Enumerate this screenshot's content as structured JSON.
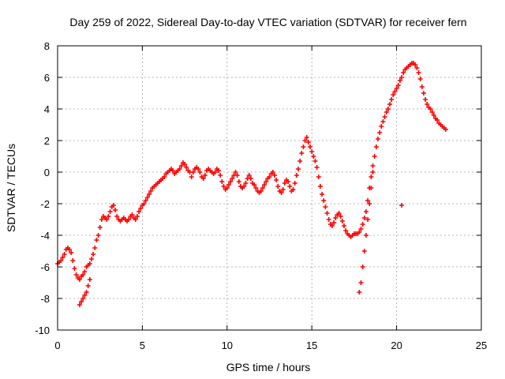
{
  "chart_data": {
    "type": "scatter",
    "title": "Day 259 of 2022, Sidereal Day-to-day VTEC variation (SDTVAR) for receiver fern",
    "xlabel": "GPS time / hours",
    "ylabel": "SDTVAR / TECUs",
    "xlim": [
      0,
      25
    ],
    "ylim": [
      -10,
      8
    ],
    "xticks": [
      0,
      5,
      10,
      15,
      20,
      25
    ],
    "yticks": [
      -10,
      -8,
      -6,
      -4,
      -2,
      0,
      2,
      4,
      6,
      8
    ],
    "xtick_labels": [
      "0",
      "5",
      "10",
      "15",
      "20",
      "25"
    ],
    "ytick_labels": [
      "-10",
      "-8",
      "-6",
      "-4",
      "-2",
      "0",
      "2",
      "4",
      "6",
      "8"
    ],
    "grid": true,
    "marker": "+",
    "series": [
      {
        "name": "SDTVAR",
        "color": "#ff0000",
        "points": [
          [
            0.0,
            -5.8
          ],
          [
            0.1,
            -5.7
          ],
          [
            0.2,
            -5.6
          ],
          [
            0.3,
            -5.4
          ],
          [
            0.4,
            -5.2
          ],
          [
            0.5,
            -4.9
          ],
          [
            0.6,
            -4.8
          ],
          [
            0.7,
            -4.9
          ],
          [
            0.8,
            -5.1
          ],
          [
            0.9,
            -5.6
          ],
          [
            1.0,
            -6.1
          ],
          [
            1.1,
            -6.5
          ],
          [
            1.2,
            -6.7
          ],
          [
            1.3,
            -6.8
          ],
          [
            1.4,
            -6.6
          ],
          [
            1.5,
            -6.5
          ],
          [
            1.6,
            -6.3
          ],
          [
            1.7,
            -6.0
          ],
          [
            1.8,
            -5.9
          ],
          [
            1.9,
            -5.8
          ],
          [
            2.0,
            -5.5
          ],
          [
            2.1,
            -5.2
          ],
          [
            2.2,
            -4.8
          ],
          [
            2.3,
            -4.3
          ],
          [
            2.4,
            -4.0
          ],
          [
            2.5,
            -3.5
          ],
          [
            2.6,
            -3.0
          ],
          [
            2.7,
            -2.8
          ],
          [
            2.8,
            -2.9
          ],
          [
            2.9,
            -3.0
          ],
          [
            3.0,
            -2.8
          ],
          [
            3.1,
            -2.5
          ],
          [
            3.2,
            -2.2
          ],
          [
            3.3,
            -2.1
          ],
          [
            3.4,
            -2.4
          ],
          [
            3.5,
            -2.8
          ],
          [
            3.6,
            -3.0
          ],
          [
            3.7,
            -3.1
          ],
          [
            3.8,
            -3.0
          ],
          [
            3.9,
            -2.9
          ],
          [
            4.0,
            -3.0
          ],
          [
            4.1,
            -3.1
          ],
          [
            4.2,
            -3.0
          ],
          [
            4.3,
            -2.8
          ],
          [
            4.4,
            -2.7
          ],
          [
            4.5,
            -2.9
          ],
          [
            4.6,
            -3.0
          ],
          [
            4.7,
            -2.8
          ],
          [
            4.8,
            -2.5
          ],
          [
            4.9,
            -2.3
          ],
          [
            5.0,
            -2.1
          ],
          [
            5.1,
            -2.0
          ],
          [
            5.2,
            -1.8
          ],
          [
            5.3,
            -1.6
          ],
          [
            5.4,
            -1.4
          ],
          [
            5.5,
            -1.2
          ],
          [
            5.6,
            -1.0
          ],
          [
            5.7,
            -0.9
          ],
          [
            5.8,
            -0.8
          ],
          [
            5.9,
            -0.7
          ],
          [
            6.0,
            -0.6
          ],
          [
            6.1,
            -0.5
          ],
          [
            6.2,
            -0.4
          ],
          [
            6.3,
            -0.3
          ],
          [
            6.4,
            -0.1
          ],
          [
            6.5,
            0.0
          ],
          [
            6.6,
            0.1
          ],
          [
            6.7,
            0.2
          ],
          [
            6.8,
            0.1
          ],
          [
            6.9,
            -0.1
          ],
          [
            7.0,
            0.0
          ],
          [
            7.1,
            0.1
          ],
          [
            7.2,
            0.2
          ],
          [
            7.3,
            0.4
          ],
          [
            7.4,
            0.6
          ],
          [
            7.5,
            0.5
          ],
          [
            7.6,
            0.3
          ],
          [
            7.7,
            0.1
          ],
          [
            7.8,
            0.0
          ],
          [
            7.9,
            -0.3
          ],
          [
            8.0,
            0.0
          ],
          [
            8.1,
            0.2
          ],
          [
            8.2,
            0.3
          ],
          [
            8.3,
            0.2
          ],
          [
            8.4,
            0.0
          ],
          [
            8.5,
            -0.3
          ],
          [
            8.6,
            -0.4
          ],
          [
            8.7,
            -0.2
          ],
          [
            8.8,
            0.1
          ],
          [
            8.9,
            0.2
          ],
          [
            9.0,
            0.1
          ],
          [
            9.1,
            0.0
          ],
          [
            9.2,
            -0.1
          ],
          [
            9.3,
            0.0
          ],
          [
            9.4,
            0.2
          ],
          [
            9.5,
            0.1
          ],
          [
            9.6,
            -0.2
          ],
          [
            9.7,
            -0.6
          ],
          [
            9.8,
            -0.9
          ],
          [
            9.9,
            -1.1
          ],
          [
            10.0,
            -1.0
          ],
          [
            10.1,
            -0.8
          ],
          [
            10.2,
            -0.6
          ],
          [
            10.3,
            -0.4
          ],
          [
            10.4,
            -0.2
          ],
          [
            10.5,
            0.0
          ],
          [
            10.6,
            -0.2
          ],
          [
            10.7,
            -0.6
          ],
          [
            10.8,
            -0.9
          ],
          [
            10.9,
            -1.0
          ],
          [
            11.0,
            -0.9
          ],
          [
            11.1,
            -0.7
          ],
          [
            11.2,
            -0.4
          ],
          [
            11.3,
            -0.2
          ],
          [
            11.4,
            -0.4
          ],
          [
            11.5,
            -0.7
          ],
          [
            11.6,
            -0.8
          ],
          [
            11.7,
            -1.0
          ],
          [
            11.8,
            -1.2
          ],
          [
            11.9,
            -1.3
          ],
          [
            12.0,
            -1.2
          ],
          [
            12.1,
            -1.0
          ],
          [
            12.2,
            -0.8
          ],
          [
            12.3,
            -0.6
          ],
          [
            12.4,
            -0.4
          ],
          [
            12.5,
            -0.3
          ],
          [
            12.6,
            -0.1
          ],
          [
            12.7,
            0.0
          ],
          [
            12.8,
            -0.2
          ],
          [
            12.9,
            -0.5
          ],
          [
            13.0,
            -0.9
          ],
          [
            13.1,
            -1.2
          ],
          [
            13.2,
            -1.3
          ],
          [
            13.3,
            -1.1
          ],
          [
            13.4,
            -0.7
          ],
          [
            13.5,
            -0.5
          ],
          [
            13.6,
            -0.6
          ],
          [
            13.7,
            -0.9
          ],
          [
            13.8,
            -1.2
          ],
          [
            13.9,
            -1.1
          ],
          [
            14.0,
            -0.7
          ],
          [
            14.1,
            -0.2
          ],
          [
            14.2,
            0.2
          ],
          [
            14.3,
            0.7
          ],
          [
            14.4,
            1.2
          ],
          [
            14.5,
            1.6
          ],
          [
            14.6,
            2.0
          ],
          [
            14.7,
            2.2
          ],
          [
            14.8,
            1.9
          ],
          [
            14.9,
            1.6
          ],
          [
            15.0,
            1.3
          ],
          [
            15.1,
            1.0
          ],
          [
            15.2,
            0.7
          ],
          [
            15.3,
            0.3
          ],
          [
            15.4,
            -0.3
          ],
          [
            15.5,
            -0.9
          ],
          [
            15.6,
            -1.4
          ],
          [
            15.7,
            -1.8
          ],
          [
            15.8,
            -2.2
          ],
          [
            15.9,
            -2.6
          ],
          [
            16.0,
            -3.0
          ],
          [
            16.1,
            -3.3
          ],
          [
            16.2,
            -3.4
          ],
          [
            16.3,
            -3.2
          ],
          [
            16.4,
            -2.9
          ],
          [
            16.5,
            -2.7
          ],
          [
            16.6,
            -2.6
          ],
          [
            16.7,
            -2.8
          ],
          [
            16.8,
            -3.1
          ],
          [
            16.9,
            -3.4
          ],
          [
            17.0,
            -3.7
          ],
          [
            17.1,
            -3.9
          ],
          [
            17.2,
            -4.0
          ],
          [
            17.3,
            -4.1
          ],
          [
            17.4,
            -4.0
          ],
          [
            17.5,
            -3.9
          ],
          [
            17.6,
            -3.9
          ],
          [
            17.7,
            -3.9
          ],
          [
            17.8,
            -3.8
          ],
          [
            17.9,
            -3.6
          ],
          [
            18.0,
            -3.3
          ],
          [
            18.1,
            -2.9
          ],
          [
            18.2,
            -2.5
          ],
          [
            18.3,
            -1.8
          ],
          [
            18.4,
            -1.0
          ],
          [
            18.5,
            -0.3
          ],
          [
            18.6,
            0.4
          ],
          [
            18.7,
            1.0
          ],
          [
            18.8,
            1.6
          ],
          [
            18.9,
            2.1
          ],
          [
            19.0,
            2.5
          ],
          [
            19.1,
            2.9
          ],
          [
            19.2,
            3.2
          ],
          [
            19.3,
            3.5
          ],
          [
            19.4,
            3.8
          ],
          [
            19.5,
            4.0
          ],
          [
            19.6,
            4.3
          ],
          [
            19.7,
            4.6
          ],
          [
            19.8,
            4.9
          ],
          [
            19.9,
            5.1
          ],
          [
            20.0,
            5.3
          ],
          [
            20.1,
            5.5
          ],
          [
            20.2,
            5.8
          ],
          [
            20.3,
            6.0
          ],
          [
            20.4,
            6.3
          ],
          [
            20.5,
            6.5
          ],
          [
            20.6,
            6.6
          ],
          [
            20.7,
            6.7
          ],
          [
            20.8,
            6.8
          ],
          [
            20.9,
            6.9
          ],
          [
            21.0,
            6.9
          ],
          [
            21.1,
            6.8
          ],
          [
            21.2,
            6.6
          ],
          [
            21.3,
            6.3
          ],
          [
            21.4,
            5.9
          ],
          [
            21.5,
            5.4
          ],
          [
            21.6,
            5.0
          ],
          [
            21.7,
            4.6
          ],
          [
            21.8,
            4.3
          ],
          [
            21.9,
            4.1
          ],
          [
            22.0,
            4.0
          ],
          [
            22.1,
            3.8
          ],
          [
            22.2,
            3.6
          ],
          [
            22.3,
            3.4
          ],
          [
            22.4,
            3.3
          ],
          [
            22.5,
            3.1
          ],
          [
            22.6,
            3.0
          ],
          [
            22.7,
            2.9
          ],
          [
            22.8,
            2.8
          ],
          [
            22.9,
            2.7
          ],
          [
            17.8,
            -7.6
          ],
          [
            17.9,
            -7.0
          ],
          [
            18.0,
            -6.0
          ],
          [
            18.1,
            -5.0
          ],
          [
            18.2,
            -4.0
          ],
          [
            18.3,
            -3.0
          ],
          [
            18.4,
            -2.0
          ],
          [
            18.5,
            -1.0
          ],
          [
            18.6,
            0.0
          ],
          [
            1.3,
            -8.4
          ],
          [
            1.4,
            -8.2
          ],
          [
            1.5,
            -8.0
          ],
          [
            1.6,
            -7.8
          ],
          [
            1.7,
            -7.6
          ],
          [
            1.8,
            -7.2
          ],
          [
            1.9,
            -6.8
          ],
          [
            20.3,
            -2.1
          ]
        ]
      }
    ]
  }
}
